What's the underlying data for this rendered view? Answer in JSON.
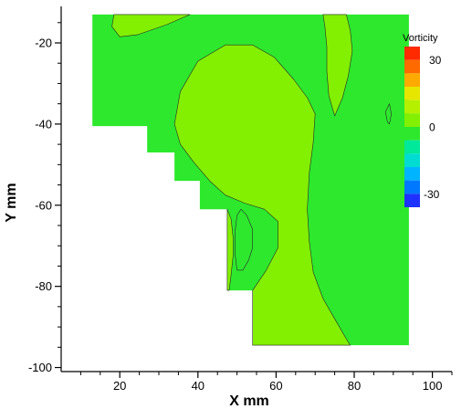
{
  "chart_data": {
    "type": "heatmap",
    "subtype": "filled-contour",
    "xlabel": "X mm",
    "ylabel": "Y mm",
    "xlim": [
      5,
      105
    ],
    "ylim": [
      -101,
      -11
    ],
    "xticks": [
      20,
      40,
      60,
      80,
      100
    ],
    "yticks": [
      -20,
      -40,
      -60,
      -80,
      -100
    ],
    "grid": false,
    "legend": {
      "title": "Vorticity",
      "placement": "top-right",
      "range": [
        -36,
        36
      ],
      "ticks": [
        30,
        0,
        -30
      ],
      "levels": [
        {
          "lo": 30,
          "hi": 36,
          "color": "#ff2a00"
        },
        {
          "lo": 24,
          "hi": 30,
          "color": "#ff6a00"
        },
        {
          "lo": 18,
          "hi": 24,
          "color": "#ffaa00"
        },
        {
          "lo": 12,
          "hi": 18,
          "color": "#e6e600"
        },
        {
          "lo": 6,
          "hi": 12,
          "color": "#b4f000"
        },
        {
          "lo": 0,
          "hi": 6,
          "color": "#82f000"
        },
        {
          "lo": -6,
          "hi": 0,
          "color": "#2de82d"
        },
        {
          "lo": -12,
          "hi": -6,
          "color": "#00e89a"
        },
        {
          "lo": -18,
          "hi": -12,
          "color": "#00dcd2"
        },
        {
          "lo": -24,
          "hi": -18,
          "color": "#00b4ff"
        },
        {
          "lo": -30,
          "hi": -24,
          "color": "#0078ff"
        },
        {
          "lo": -36,
          "hi": -30,
          "color": "#1e32ff"
        }
      ]
    },
    "domain_boundary": [
      [
        13,
        -13
      ],
      [
        94,
        -13
      ],
      [
        94,
        -94.5
      ],
      [
        54,
        -94.5
      ],
      [
        54,
        -81
      ],
      [
        47.5,
        -81
      ],
      [
        47.5,
        -61
      ],
      [
        40.5,
        -61
      ],
      [
        40.5,
        -54
      ],
      [
        34,
        -54
      ],
      [
        34,
        -47
      ],
      [
        27,
        -47
      ],
      [
        27,
        -40.5
      ],
      [
        13,
        -40.5
      ]
    ],
    "regions": [
      {
        "level_range": [
          -6,
          0
        ],
        "description": "background",
        "polygon": "domain_boundary"
      },
      {
        "level_range": [
          0,
          6
        ],
        "description": "large core",
        "polygon": [
          [
            34,
            -40
          ],
          [
            35.5,
            -32
          ],
          [
            40,
            -24.5
          ],
          [
            47,
            -20.5
          ],
          [
            54,
            -20.5
          ],
          [
            59.5,
            -23.5
          ],
          [
            64.5,
            -29
          ],
          [
            68,
            -33.5
          ],
          [
            70,
            -37.5
          ],
          [
            69.5,
            -44.5
          ],
          [
            68.5,
            -52
          ],
          [
            68,
            -61
          ],
          [
            68.5,
            -69
          ],
          [
            69.5,
            -76.5
          ],
          [
            72,
            -83
          ],
          [
            75,
            -88
          ],
          [
            78,
            -93
          ],
          [
            79,
            -94.5
          ],
          [
            54,
            -94.5
          ],
          [
            54,
            -81
          ],
          [
            57.5,
            -76
          ],
          [
            60.5,
            -70.5
          ],
          [
            60.5,
            -64
          ],
          [
            57,
            -61
          ],
          [
            52,
            -59.5
          ],
          [
            47,
            -57.5
          ],
          [
            43,
            -54
          ],
          [
            39,
            -49.5
          ],
          [
            35.5,
            -45
          ]
        ]
      },
      {
        "level_range": [
          0,
          6
        ],
        "description": "top-left patch",
        "polygon": [
          [
            18.5,
            -13
          ],
          [
            38,
            -13
          ],
          [
            32,
            -15.5
          ],
          [
            24.5,
            -18
          ],
          [
            20,
            -18.5
          ],
          [
            18,
            -16
          ]
        ]
      },
      {
        "level_range": [
          0,
          6
        ],
        "description": "top-right strip",
        "polygon": [
          [
            72,
            -13
          ],
          [
            78,
            -13
          ],
          [
            79,
            -17
          ],
          [
            79.5,
            -22
          ],
          [
            78.5,
            -28
          ],
          [
            77,
            -33.5
          ],
          [
            75,
            -38
          ],
          [
            73.5,
            -33
          ],
          [
            73,
            -27
          ],
          [
            73,
            -21
          ],
          [
            72.5,
            -16
          ]
        ]
      },
      {
        "level_range": [
          0,
          6
        ],
        "description": "left edge patch",
        "polygon": [
          [
            47.5,
            -61
          ],
          [
            48.5,
            -63.5
          ],
          [
            49,
            -68
          ],
          [
            49,
            -72.5
          ],
          [
            48.5,
            -77
          ],
          [
            48,
            -81
          ],
          [
            47.5,
            -81
          ]
        ]
      },
      {
        "level_range": [
          -6,
          0
        ],
        "description": "inner hole",
        "polygon": [
          [
            51,
            -61
          ],
          [
            52.5,
            -62.5
          ],
          [
            54,
            -66
          ],
          [
            54,
            -70.5
          ],
          [
            53,
            -73.5
          ],
          [
            51.5,
            -76
          ],
          [
            50,
            -76
          ],
          [
            49.5,
            -72
          ],
          [
            49.5,
            -66.5
          ],
          [
            50,
            -62.5
          ]
        ]
      },
      {
        "level_range": [
          -6,
          0
        ],
        "description": "small right patch",
        "polygon": [
          [
            88,
            -37
          ],
          [
            89,
            -35
          ],
          [
            89.5,
            -37.5
          ],
          [
            89,
            -40
          ],
          [
            88.5,
            -39.5
          ]
        ]
      }
    ]
  }
}
